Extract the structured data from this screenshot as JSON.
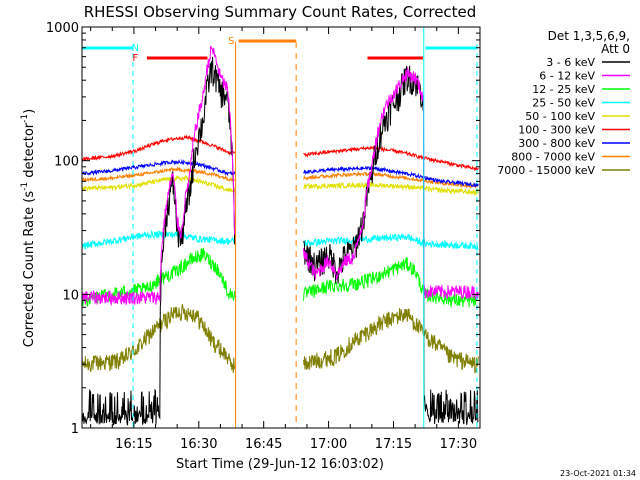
{
  "chart_data": {
    "type": "line",
    "title": "RHESSI Observing Summary Count Rates, Corrected",
    "xlabel": "Start Time (29-Jun-12 16:03:02)",
    "ylabel": "Corrected Count Rate (s⁻¹ detector⁻¹)",
    "ylabel_parts": {
      "main": "Corrected Count Rate (s",
      "sup1": "-1",
      "mid": " detector",
      "sup2": "-1",
      "end": ")"
    },
    "y_scale": "log",
    "ylim": [
      1,
      1000
    ],
    "y_ticks": [
      1,
      10,
      100,
      1000
    ],
    "y_tick_labels": [
      "1",
      "10",
      "100",
      "1000"
    ],
    "xlim_minutes": [
      3.0,
      95.0
    ],
    "x_ticks_minutes": [
      15,
      30,
      45,
      60,
      75,
      90
    ],
    "x_tick_labels": [
      "16:15",
      "16:30",
      "16:45",
      "17:00",
      "17:15",
      "17:30"
    ],
    "legend_title_lines": [
      "Det 1,3,5,6,9,",
      "Att 0"
    ],
    "legend_position": "right",
    "series": [
      {
        "name": "3 - 6 keV",
        "color": "#000000"
      },
      {
        "name": "6 - 12 keV",
        "color": "#ff00ff"
      },
      {
        "name": "12 - 25 keV",
        "color": "#00ff00"
      },
      {
        "name": "25 - 50 keV",
        "color": "#00ffff"
      },
      {
        "name": "50 - 100 keV",
        "color": "#e0e000"
      },
      {
        "name": "100 - 300 keV",
        "color": "#ff0000"
      },
      {
        "name": "300 - 800 keV",
        "color": "#0000ff"
      },
      {
        "name": "800 - 7000 keV",
        "color": "#ff8000"
      },
      {
        "name": "7000 - 15000 keV",
        "color": "#808000"
      }
    ],
    "flags": [
      {
        "label": "N",
        "color": "#00ffff"
      },
      {
        "label": "F",
        "color": "#ff0000"
      },
      {
        "label": "S",
        "color": "#ff8000"
      }
    ],
    "footer_timestamp": "23-Oct-2021 01:34"
  }
}
